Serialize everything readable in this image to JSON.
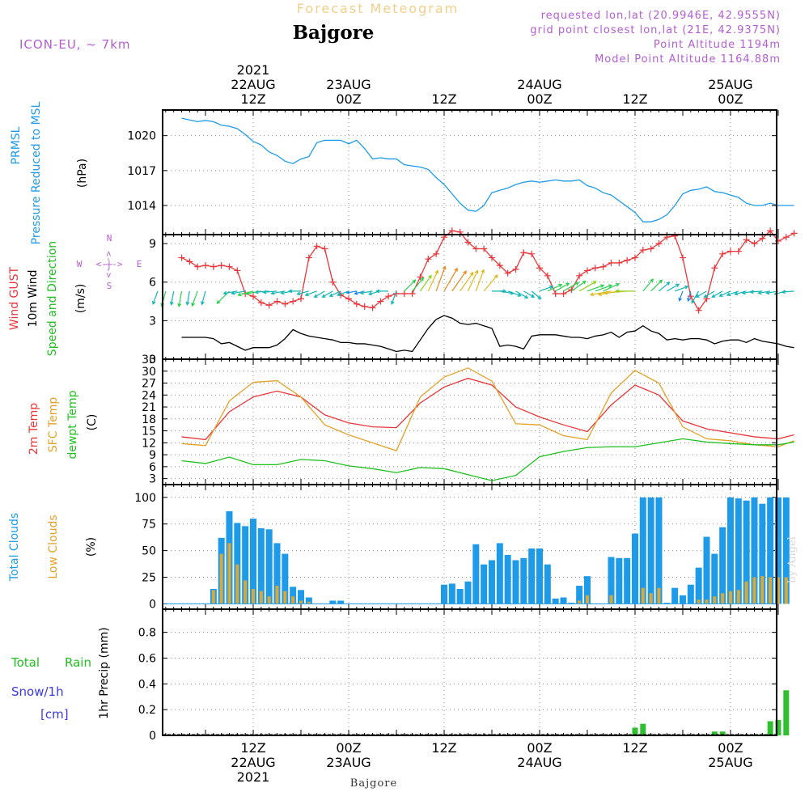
{
  "header": {
    "forecast_title": "Forecast Meteogram",
    "location": "Bajgore",
    "model": "ICON-EU, ~ 7km",
    "requested": "requested lon,lat (20.9946E, 42.9555N)",
    "grid_point": "grid point closest lon,lat (21E, 42.9375N)",
    "point_altitude": "Point Altitude 1194m",
    "model_altitude": "Model Point Altitude 1164.88m",
    "credit": "by Angel",
    "footer_location": "Bajgore"
  },
  "colors": {
    "pressure": "#1e9be8",
    "gust": "#e8363a",
    "wind": "#000000",
    "temp": "#e8363a",
    "sfc_temp": "#e3a128",
    "dewpt": "#1fbf1f",
    "total_clouds": "#1e9be8",
    "low_clouds": "#d9a83a",
    "rain": "#2fbf2f",
    "snow": "#3a3ae0",
    "purple": "#b25ed1",
    "title_orange": "#f2cf8a"
  },
  "chart_data": [
    {
      "type": "line",
      "title": "PRMSL Pressure Reduced to MSL",
      "ylabel": "(hPa)",
      "yticks": [
        1014,
        1017,
        1020
      ],
      "ylim": [
        1011.5,
        1022.2
      ],
      "x_hours_from_22AUG_00Z": [
        3,
        5,
        6,
        7,
        8,
        9,
        10,
        11,
        12,
        13,
        14,
        15,
        16,
        17,
        18,
        19,
        20,
        21,
        22,
        23,
        24,
        25,
        26,
        27,
        28,
        29,
        30,
        31,
        32,
        33,
        34,
        35,
        36,
        37,
        38,
        39,
        40,
        41,
        42,
        43,
        44,
        45,
        46,
        47,
        48,
        49,
        50,
        51,
        52,
        53,
        54,
        55,
        56,
        57,
        58,
        59,
        60,
        61,
        62,
        63,
        64,
        65,
        66,
        67,
        68,
        69,
        70,
        71,
        72,
        73,
        74,
        75,
        76,
        77,
        78,
        79,
        80
      ],
      "series": [
        {
          "name": "PRMSL",
          "values": [
            1021.5,
            1021.2,
            1021.3,
            1021.2,
            1020.9,
            1020.8,
            1020.6,
            1020.1,
            1019.5,
            1019.2,
            1018.6,
            1018.3,
            1017.8,
            1017.6,
            1018.0,
            1018.2,
            1019.4,
            1019.6,
            1019.6,
            1019.6,
            1019.3,
            1019.6,
            1018.9,
            1018.0,
            1018.1,
            1018.0,
            1018.0,
            1017.5,
            1017.4,
            1017.3,
            1017.1,
            1016.4,
            1015.8,
            1015.0,
            1014.2,
            1013.6,
            1013.5,
            1014.0,
            1015.1,
            1015.3,
            1015.5,
            1015.8,
            1016.0,
            1016.1,
            1016.0,
            1016.1,
            1016.2,
            1016.1,
            1016.1,
            1016.2,
            1015.7,
            1015.5,
            1015.1,
            1014.9,
            1014.4,
            1013.9,
            1013.4,
            1012.6,
            1012.6,
            1012.8,
            1013.2,
            1014.0,
            1015.0,
            1015.3,
            1015.4,
            1015.6,
            1015.2,
            1015.1,
            1014.9,
            1014.7,
            1014.2,
            1014.0,
            1014.0,
            1014.2,
            1014.0,
            1014.0,
            1014.0
          ]
        }
      ]
    },
    {
      "type": "line",
      "title": "Wind GUST 10m Wind Speed and Direction",
      "ylabel": "(m/s)",
      "yticks": [
        0,
        3,
        6,
        9
      ],
      "ylim": [
        0,
        9.7
      ],
      "compass": {
        "n": "N",
        "s": "S",
        "e": "E",
        "w": "W",
        "glyph": "<-|->"
      },
      "x_hours_from_22AUG_00Z": [
        3,
        4,
        5,
        6,
        7,
        8,
        9,
        10,
        11,
        12,
        13,
        14,
        15,
        16,
        17,
        18,
        19,
        20,
        21,
        22,
        23,
        24,
        25,
        26,
        27,
        28,
        29,
        30,
        31,
        32,
        33,
        34,
        35,
        36,
        37,
        38,
        39,
        40,
        41,
        42,
        43,
        44,
        45,
        46,
        47,
        48,
        49,
        50,
        51,
        52,
        53,
        54,
        55,
        56,
        57,
        58,
        59,
        60,
        61,
        62,
        63,
        64,
        65,
        66,
        67,
        68,
        69,
        70,
        71,
        72,
        73,
        74,
        75,
        76,
        77,
        78,
        79,
        80
      ],
      "series": [
        {
          "name": "Wind GUST",
          "values": [
            7.9,
            7.6,
            7.2,
            7.3,
            7.2,
            7.3,
            7.2,
            6.9,
            5.1,
            4.9,
            4.4,
            4.2,
            4.5,
            4.3,
            4.5,
            4.7,
            7.9,
            8.8,
            8.6,
            6.0,
            5.0,
            4.7,
            4.3,
            4.1,
            4.0,
            4.5,
            4.9,
            5.1,
            5.1,
            5.1,
            6.4,
            7.8,
            8.2,
            9.5,
            10.0,
            9.9,
            9.1,
            8.6,
            8.6,
            7.9,
            7.3,
            6.7,
            7.0,
            8.3,
            8.2,
            7.1,
            6.5,
            5.1,
            5.1,
            5.4,
            6.5,
            6.9,
            7.1,
            7.2,
            7.5,
            7.5,
            7.7,
            7.9,
            8.5,
            8.6,
            9.0,
            9.5,
            9.6,
            7.9,
            4.9,
            3.8,
            4.7,
            7.1,
            8.2,
            8.4,
            8.4,
            9.3,
            9.0,
            9.4,
            10.0,
            9.2,
            9.5,
            9.8
          ]
        },
        {
          "name": "10m Wind",
          "values": [
            1.7,
            1.7,
            1.7,
            1.7,
            1.6,
            1.2,
            1.3,
            1.0,
            0.7,
            0.9,
            0.9,
            0.9,
            1.1,
            1.6,
            2.3,
            2.0,
            1.8,
            1.7,
            1.6,
            1.5,
            1.3,
            1.3,
            1.2,
            1.2,
            1.1,
            1.0,
            0.8,
            0.6,
            0.7,
            0.6,
            1.5,
            2.4,
            3.1,
            3.4,
            3.2,
            2.8,
            2.7,
            2.8,
            2.6,
            2.4,
            1.0,
            1.1,
            1.0,
            0.8,
            1.8,
            1.9,
            1.9,
            1.9,
            1.8,
            1.7,
            1.7,
            1.6,
            1.8,
            1.9,
            2.1,
            1.7,
            2.1,
            2.2,
            2.6,
            2.2,
            2.0,
            1.5,
            1.6,
            1.5,
            1.6,
            1.6,
            1.5,
            1.2,
            1.4,
            1.5,
            1.5,
            1.3,
            1.6,
            1.4,
            1.3,
            1.2,
            1.0,
            0.9
          ]
        }
      ],
      "wind_arrows": {
        "x": [
          0,
          1,
          2,
          3,
          4,
          5,
          6,
          9,
          10,
          11,
          12,
          13,
          14,
          15,
          16,
          17,
          18,
          19,
          20,
          21,
          22,
          23,
          24,
          25,
          26,
          27,
          28,
          29,
          30,
          31,
          32,
          33,
          34,
          35,
          36,
          37,
          38,
          39,
          40,
          41,
          42,
          43,
          44,
          45,
          46,
          47,
          48,
          49,
          50,
          51,
          52,
          53,
          54,
          55,
          56,
          57,
          58,
          59,
          60,
          61,
          62,
          63,
          64,
          65,
          66,
          67,
          68,
          69,
          70,
          71,
          72,
          73,
          74,
          75,
          76,
          77,
          78,
          79,
          80
        ],
        "dir_from_deg": [
          20,
          15,
          10,
          10,
          10,
          20,
          15,
          45,
          80,
          80,
          75,
          80,
          85,
          85,
          80,
          80,
          90,
          75,
          70,
          60,
          60,
          65,
          70,
          80,
          75,
          80,
          75,
          90,
          20,
          225,
          220,
          215,
          205,
          200,
          210,
          215,
          215,
          205,
          200,
          220,
          270,
          280,
          290,
          300,
          300,
          310,
          250,
          245,
          240,
          240,
          235,
          240,
          250,
          250,
          245,
          80,
          80,
          85,
          90,
          220,
          225,
          230,
          240,
          250,
          20,
          15,
          30,
          60,
          60,
          60,
          65,
          70,
          75,
          80,
          85,
          80,
          80,
          75,
          85
        ],
        "speed": [
          5,
          6,
          5,
          6,
          5,
          6,
          5,
          7,
          5,
          5,
          6,
          6,
          5,
          5,
          5,
          4,
          4,
          4,
          4,
          4,
          4,
          4,
          4,
          3,
          3,
          4,
          4,
          4,
          5,
          6,
          7,
          8,
          10,
          12,
          12,
          11,
          10,
          10,
          10,
          9,
          5,
          5,
          5,
          5,
          4,
          4,
          5,
          6,
          6,
          7,
          7,
          8,
          7,
          7,
          7,
          9,
          9,
          10,
          8,
          6,
          6,
          5,
          5,
          5,
          3,
          3,
          5,
          4,
          4,
          4,
          4,
          4,
          4,
          4,
          4,
          4,
          4,
          4,
          4
        ]
      }
    },
    {
      "type": "line",
      "title": "2m Temp SFC Temp dewpt Temp",
      "ylabel": "(C)",
      "yticks": [
        3,
        6,
        9,
        12,
        15,
        18,
        21,
        24,
        27,
        30,
        33
      ],
      "ylim": [
        1.5,
        33
      ],
      "x_hours_from_22AUG_00Z": [
        3,
        6,
        9,
        12,
        15,
        18,
        21,
        24,
        27,
        30,
        33,
        36,
        39,
        42,
        45,
        48,
        51,
        54,
        57,
        60,
        63,
        66,
        69,
        72,
        75,
        78,
        80
      ],
      "series": [
        {
          "name": "2m Temp",
          "values": [
            13.5,
            12.8,
            19.8,
            23.5,
            25.0,
            23.5,
            19.0,
            17.0,
            16.0,
            15.8,
            22.0,
            26.0,
            28.2,
            26.5,
            21.0,
            18.5,
            16.5,
            14.8,
            21.5,
            26.5,
            24.0,
            17.5,
            15.5,
            14.5,
            13.5,
            13.0,
            14.0
          ]
        },
        {
          "name": "SFC Temp",
          "values": [
            11.8,
            11.3,
            22.5,
            27.2,
            27.6,
            23.5,
            16.5,
            14.0,
            12.0,
            10.0,
            23.5,
            28.5,
            30.8,
            27.5,
            16.8,
            16.5,
            13.8,
            12.8,
            24.5,
            30.2,
            27.0,
            16.0,
            13.0,
            12.5,
            11.5,
            11.0,
            12.5
          ]
        },
        {
          "name": "dewpt Temp",
          "values": [
            7.5,
            6.8,
            8.4,
            6.5,
            6.5,
            7.8,
            7.5,
            6.2,
            5.5,
            4.5,
            5.8,
            5.5,
            4.0,
            2.5,
            3.8,
            8.5,
            9.8,
            10.8,
            11.0,
            11.0,
            12.0,
            13.0,
            12.2,
            11.8,
            11.5,
            11.5,
            12.2
          ]
        }
      ]
    },
    {
      "type": "bar",
      "title": "Total Clouds Low Clouds",
      "ylabel": "(%)",
      "yticks": [
        0,
        25,
        50,
        75,
        100
      ],
      "ylim": [
        -5,
        112
      ],
      "x_hours_from_22AUG_00Z": [
        7,
        8,
        9,
        10,
        11,
        12,
        13,
        14,
        15,
        16,
        17,
        18,
        19,
        22,
        23,
        36,
        37,
        38,
        39,
        40,
        41,
        42,
        43,
        44,
        45,
        46,
        47,
        48,
        49,
        50,
        51,
        52,
        53,
        54,
        57,
        58,
        59,
        60,
        61,
        62,
        63,
        64,
        65,
        66,
        67,
        68,
        69,
        70,
        71,
        72,
        73,
        74,
        75,
        76,
        77,
        78,
        79,
        80
      ],
      "series": [
        {
          "name": "Total Clouds",
          "values": [
            14,
            62,
            87,
            76,
            73,
            80,
            71,
            70,
            57,
            47,
            16,
            13,
            6,
            3,
            3,
            18,
            19,
            14,
            21,
            56,
            37,
            41,
            57,
            46,
            41,
            43,
            52,
            52,
            37,
            5,
            6,
            1,
            17,
            26,
            44,
            43,
            43,
            66,
            100,
            100,
            100,
            1,
            15,
            8,
            18,
            34,
            63,
            47,
            72,
            100,
            99,
            97,
            100,
            94,
            100,
            100,
            100,
            0
          ]
        },
        {
          "name": "Low Clouds",
          "values": [
            13,
            47,
            57,
            37,
            22,
            14,
            12,
            7,
            17,
            12,
            7,
            3,
            2,
            0,
            0,
            0,
            0,
            0,
            0,
            0,
            0,
            0,
            0,
            0,
            0,
            0,
            0,
            0,
            0,
            0,
            0,
            0,
            3,
            8,
            8,
            0,
            0,
            0,
            15,
            10,
            15,
            0,
            0,
            0,
            0,
            4,
            4,
            7,
            10,
            12,
            13,
            21,
            25,
            26,
            25,
            25,
            25,
            0
          ]
        }
      ]
    },
    {
      "type": "bar",
      "title": "Total Rain Snow/1h [cm]",
      "ylabel": "1hr Precip (mm)",
      "yticks": [
        0,
        0.2,
        0.4,
        0.6,
        0.8
      ],
      "ylim": [
        0,
        0.98
      ],
      "x_hours_from_22AUG_00Z": [
        60,
        61,
        62,
        63,
        70,
        71,
        72,
        76,
        77,
        78,
        79,
        80
      ],
      "series": [
        {
          "name": "Total Rain",
          "values": [
            0.06,
            0.09,
            0.01,
            0.0,
            0.03,
            0.03,
            0.0,
            0.01,
            0.11,
            0.12,
            0.35,
            0.0
          ]
        }
      ]
    }
  ],
  "axis": {
    "year": "2021",
    "top_ticks": [
      {
        "hour": 12,
        "time": "12Z",
        "date": "22AUG",
        "year": "2021"
      },
      {
        "hour": 24,
        "time": "00Z",
        "date": "23AUG"
      },
      {
        "hour": 36,
        "time": "12Z"
      },
      {
        "hour": 48,
        "time": "00Z",
        "date": "24AUG"
      },
      {
        "hour": 60,
        "time": "12Z"
      },
      {
        "hour": 72,
        "time": "00Z",
        "date": "25AUG"
      }
    ],
    "bottom_ticks": [
      {
        "hour": 12,
        "time": "12Z",
        "date": "22AUG",
        "year": "2021"
      },
      {
        "hour": 24,
        "time": "00Z",
        "date": "23AUG"
      },
      {
        "hour": 36,
        "time": "12Z"
      },
      {
        "hour": 48,
        "time": "00Z",
        "date": "24AUG"
      },
      {
        "hour": 60,
        "time": "12Z"
      },
      {
        "hour": 72,
        "time": "00Z",
        "date": "25AUG"
      }
    ]
  },
  "panel_labels": {
    "pressure": [
      "PRMSL",
      "Pressure Reduced to MSL",
      "(hPa)"
    ],
    "wind": [
      "Wind GUST",
      "10m Wind",
      "Speed and Direction",
      "(m/s)"
    ],
    "temp": [
      "2m Temp",
      "SFC Temp",
      "dewpt Temp",
      "(C)"
    ],
    "clouds": [
      "Total Clouds",
      "Low Clouds",
      "(%)"
    ],
    "precip": [
      "Total",
      "Rain",
      "Snow/1h",
      "[cm]",
      "1hr Precip (mm)"
    ]
  }
}
